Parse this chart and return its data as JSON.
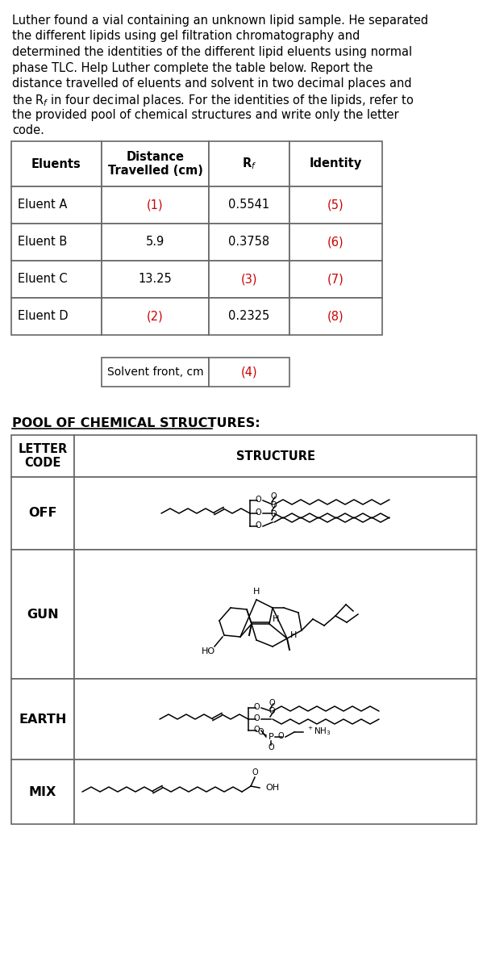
{
  "paragraph_lines": [
    "Luther found a vial containing an unknown lipid sample. He separated",
    "the different lipids using gel filtration chromatography and",
    "determined the identities of the different lipid eluents using normal",
    "phase TLC. Help Luther complete the table below. Report the",
    "distance travelled of eluents and solvent in two decimal places and",
    "the R_f in four decimal places. For the identities of the lipids, refer to",
    "the provided pool of chemical structures and write only the letter",
    "code."
  ],
  "table1_headers": [
    "Eluents",
    "Distance\nTravelled (cm)",
    "R$_f$",
    "Identity"
  ],
  "table1_rows": [
    [
      "Eluent A",
      "(1)",
      "0.5541",
      "(5)"
    ],
    [
      "Eluent B",
      "5.9",
      "0.3758",
      "(6)"
    ],
    [
      "Eluent C",
      "13.25",
      "(3)",
      "(7)"
    ],
    [
      "Eluent D",
      "(2)",
      "0.2325",
      "(8)"
    ]
  ],
  "table1_red_cells": [
    [
      0,
      1
    ],
    [
      0,
      3
    ],
    [
      1,
      3
    ],
    [
      2,
      2
    ],
    [
      2,
      3
    ],
    [
      3,
      1
    ],
    [
      3,
      3
    ]
  ],
  "solvent_label": "Solvent front, cm",
  "solvent_value": "(4)",
  "pool_title": "POOL OF CHEMICAL STRUCTURES:",
  "pool_rows": [
    "OFF",
    "GUN",
    "EARTH",
    "MIX"
  ],
  "red_color": "#cc0000",
  "black": "#000000",
  "white": "#ffffff",
  "border": "#666666",
  "font_para": 10.5,
  "font_table": 10.5,
  "font_bold": 10.5,
  "font_pool_title": 11.5
}
